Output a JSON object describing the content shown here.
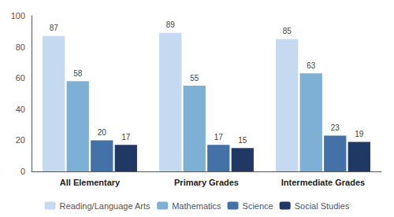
{
  "chart_data": {
    "type": "bar",
    "categories": [
      "All Elementary",
      "Primary Grades",
      "Intermediate Grades"
    ],
    "series": [
      {
        "name": "Reading/Language Arts",
        "color": "#c5d9f0",
        "values": [
          87,
          89,
          85
        ]
      },
      {
        "name": "Mathematics",
        "color": "#7eb0d5",
        "values": [
          58,
          55,
          63
        ]
      },
      {
        "name": "Science",
        "color": "#4472a8",
        "values": [
          20,
          17,
          23
        ]
      },
      {
        "name": "Social Studies",
        "color": "#1f3864",
        "values": [
          17,
          15,
          19
        ]
      }
    ],
    "ylim": [
      0,
      100
    ],
    "yticks": [
      0,
      20,
      40,
      60,
      80,
      100
    ],
    "grid": false,
    "legend": "bottom",
    "data_labels": true
  }
}
